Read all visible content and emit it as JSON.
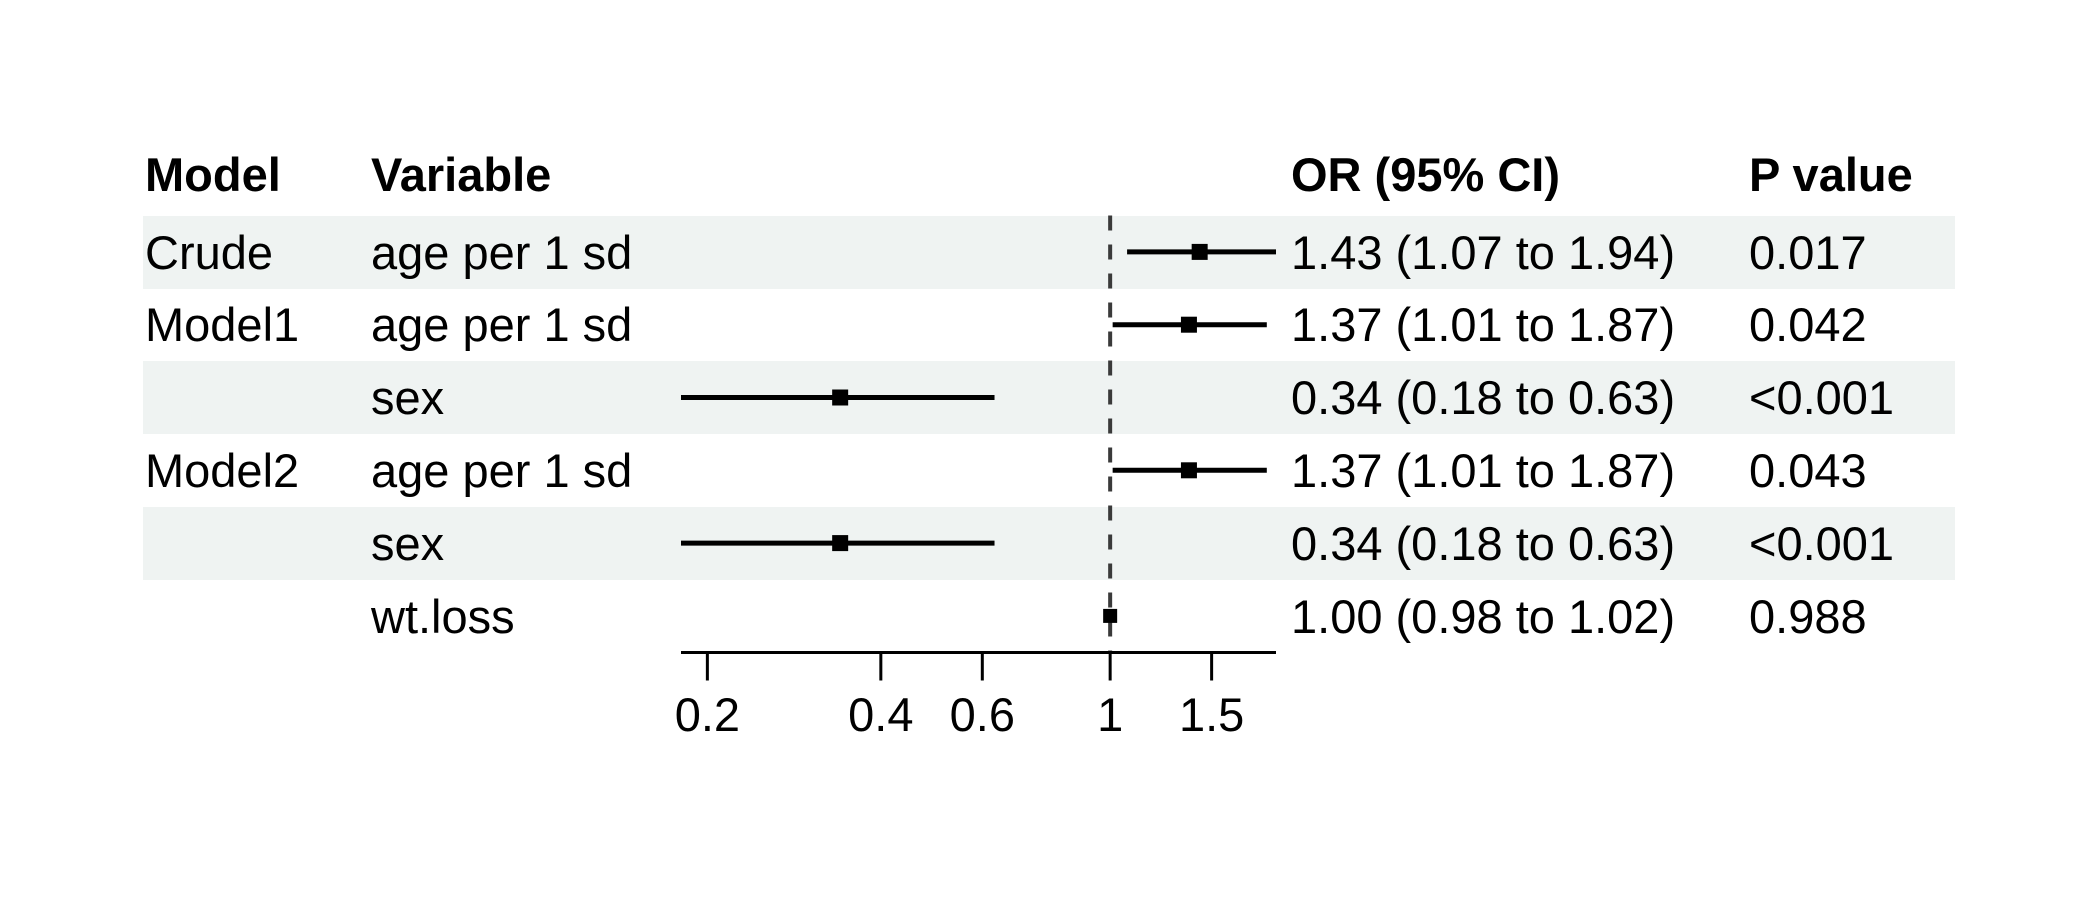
{
  "table": {
    "headers": {
      "model": "Model",
      "variable": "Variable",
      "or": "OR (95% CI)",
      "p": "P value"
    }
  },
  "chart_data": {
    "type": "scatter",
    "subtype": "forest-plot",
    "x_scale": "log10",
    "xlim": [
      0.18,
      1.94
    ],
    "x_ticks": [
      0.2,
      0.4,
      0.6,
      1,
      1.5
    ],
    "x_tick_labels": [
      "0.2",
      "0.4",
      "0.6",
      "1",
      "1.5"
    ],
    "reference_line": 1,
    "grid": false,
    "legend": "none",
    "rows": [
      {
        "model": "Crude",
        "variable": "age per 1 sd",
        "or": 1.43,
        "ci_low": 1.07,
        "ci_high": 1.94,
        "or_label": "1.43 (1.07 to 1.94)",
        "p_label": "0.017",
        "shaded": true,
        "marker_size": 16
      },
      {
        "model": "Model1",
        "variable": "age per 1 sd",
        "or": 1.37,
        "ci_low": 1.01,
        "ci_high": 1.87,
        "or_label": "1.37 (1.01 to 1.87)",
        "p_label": "0.042",
        "shaded": false,
        "marker_size": 16
      },
      {
        "model": "",
        "variable": "sex",
        "or": 0.34,
        "ci_low": 0.18,
        "ci_high": 0.63,
        "or_label": "0.34 (0.18 to 0.63)",
        "p_label": "<0.001",
        "shaded": true,
        "marker_size": 16
      },
      {
        "model": "Model2",
        "variable": "age per 1 sd",
        "or": 1.37,
        "ci_low": 1.01,
        "ci_high": 1.87,
        "or_label": "1.37 (1.01 to 1.87)",
        "p_label": "0.043",
        "shaded": false,
        "marker_size": 16
      },
      {
        "model": "",
        "variable": "sex",
        "or": 0.34,
        "ci_low": 0.18,
        "ci_high": 0.63,
        "or_label": "0.34 (0.18 to 0.63)",
        "p_label": "<0.001",
        "shaded": true,
        "marker_size": 16
      },
      {
        "model": "",
        "variable": "wt.loss",
        "or": 1.0,
        "ci_low": 0.98,
        "ci_high": 1.02,
        "or_label": "1.00 (0.98 to 1.02)",
        "p_label": "0.988",
        "shaded": false,
        "marker_size": 14
      }
    ]
  },
  "colors": {
    "row_shade": "#eff3f2",
    "text": "#000000",
    "ci_line": "#000000",
    "marker": "#000000",
    "axis": "#000000",
    "reference_line": "#3a3a3a",
    "background": "#ffffff"
  }
}
